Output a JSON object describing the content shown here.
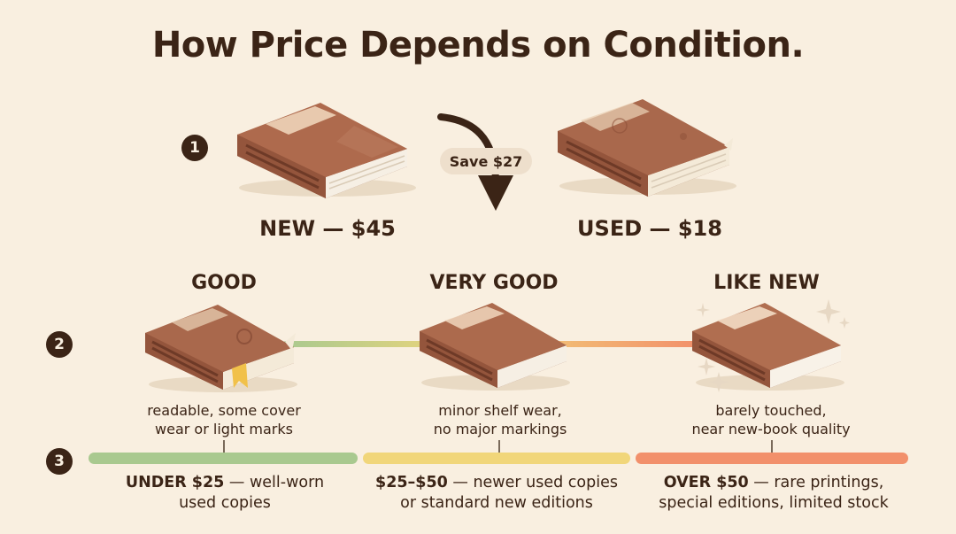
{
  "title": "How Price Depends on Condition.",
  "steps": [
    "1",
    "2",
    "3"
  ],
  "comparison": {
    "new_label": "NEW — $45",
    "used_label": "USED — $18",
    "savings": "Save $27"
  },
  "conditions": [
    {
      "title": "GOOD",
      "desc_line1": "readable, some cover",
      "desc_line2": "wear or light marks"
    },
    {
      "title": "VERY GOOD",
      "desc_line1": "minor shelf wear,",
      "desc_line2": "no major markings"
    },
    {
      "title": "LIKE NEW",
      "desc_line1": "barely touched,",
      "desc_line2": "near new-book quality"
    }
  ],
  "price_tiers": [
    {
      "bold": "UNDER $25",
      "rest": " — well-worn",
      "line2": "used copies",
      "color": "#a9c98f"
    },
    {
      "bold": "$25–$50",
      "rest": " — newer used copies",
      "line2": "or standard new editions",
      "color": "#f1d67a"
    },
    {
      "bold": "OVER $50",
      "rest": " — rare printings,",
      "line2": "special editions, limited stock",
      "color": "#f2906b"
    }
  ],
  "colors": {
    "background": "#f9efe0",
    "text": "#3b2416",
    "book_cover": "#a8664a",
    "book_pages": "#f6efe4"
  }
}
